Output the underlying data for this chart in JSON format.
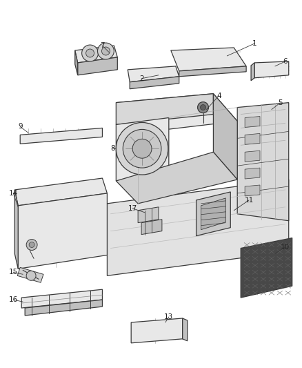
{
  "bg_color": "#ffffff",
  "fig_width": 4.38,
  "fig_height": 5.33,
  "line_color": "#3a3a3a",
  "label_color": "#222222",
  "part_face": "#e8e8e8",
  "part_dark": "#c0c0c0",
  "part_darker": "#a8a8a8",
  "lw_main": 0.9,
  "lw_thin": 0.5,
  "label_fs": 7.5
}
